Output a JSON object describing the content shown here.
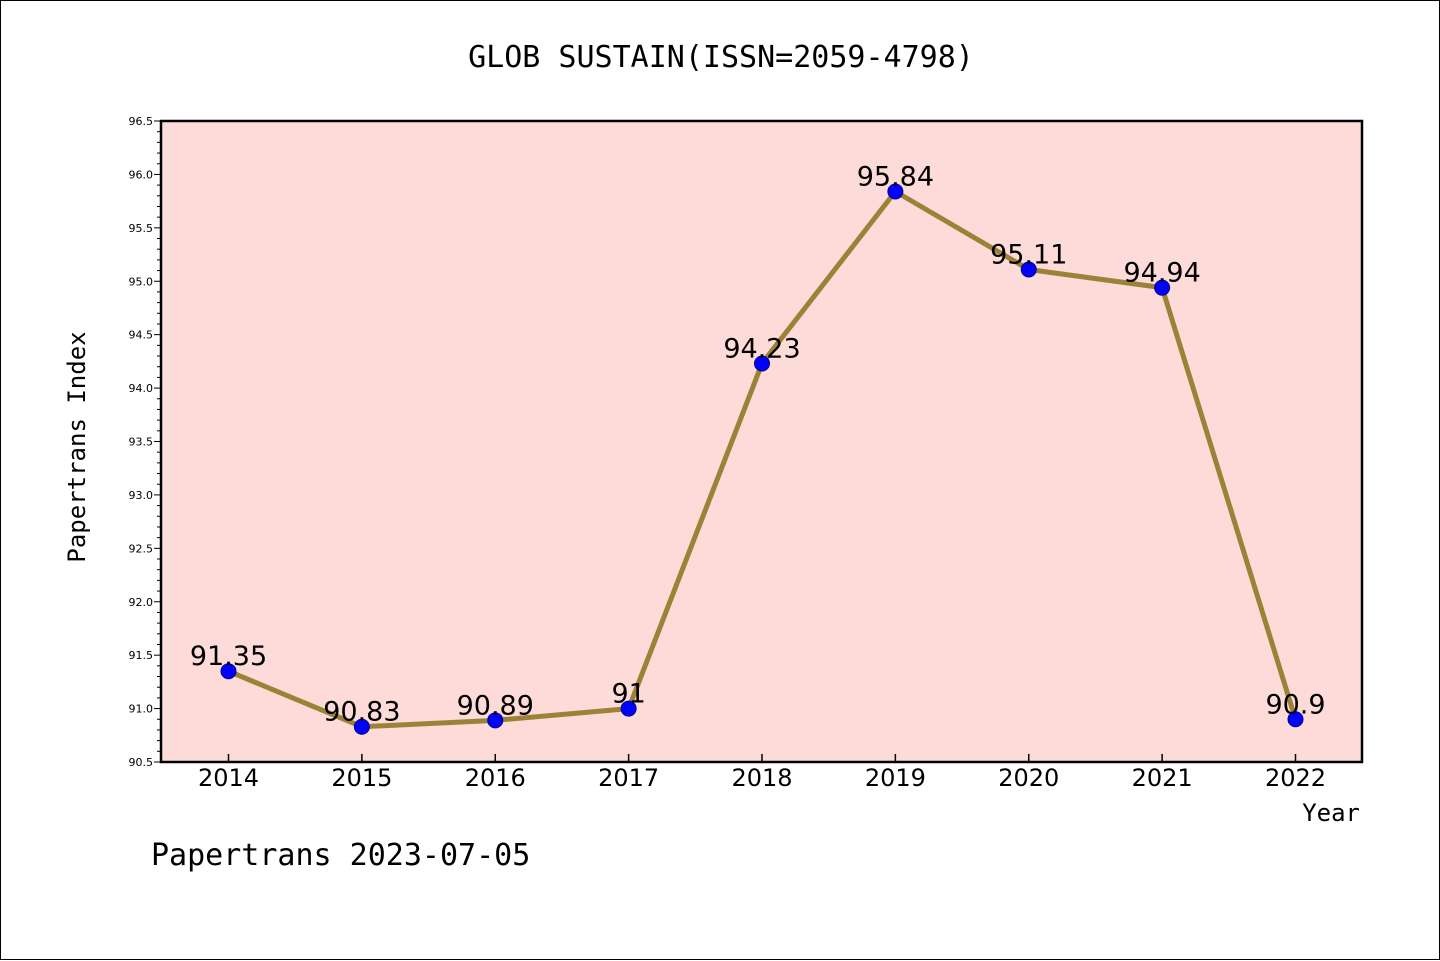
{
  "chart_data": {
    "type": "line",
    "title": "GLOB SUSTAIN(ISSN=2059-4798)",
    "xlabel": "Year",
    "ylabel": "Papertrans Index",
    "categories": [
      "2014",
      "2015",
      "2016",
      "2017",
      "2018",
      "2019",
      "2020",
      "2021",
      "2022"
    ],
    "values": [
      91.35,
      90.83,
      90.89,
      91.0,
      94.23,
      95.84,
      95.11,
      94.94,
      90.9
    ],
    "data_labels": [
      "91.35",
      "90.83",
      "90.89",
      "91",
      "94.23",
      "95.84",
      "95.11",
      "94.94",
      "90.9"
    ],
    "ylim": [
      90.5,
      96.5
    ],
    "yticks": [
      "90.5",
      "91.0",
      "91.5",
      "92.0",
      "92.5",
      "93.0",
      "93.5",
      "94.0",
      "94.5",
      "95.0",
      "95.5",
      "96.0",
      "96.5"
    ],
    "grid": false,
    "colors": {
      "plot_background": "#fddbd8",
      "line": "#9b8237",
      "marker": "#0000ff"
    }
  },
  "footer": "Papertrans 2023-07-05"
}
